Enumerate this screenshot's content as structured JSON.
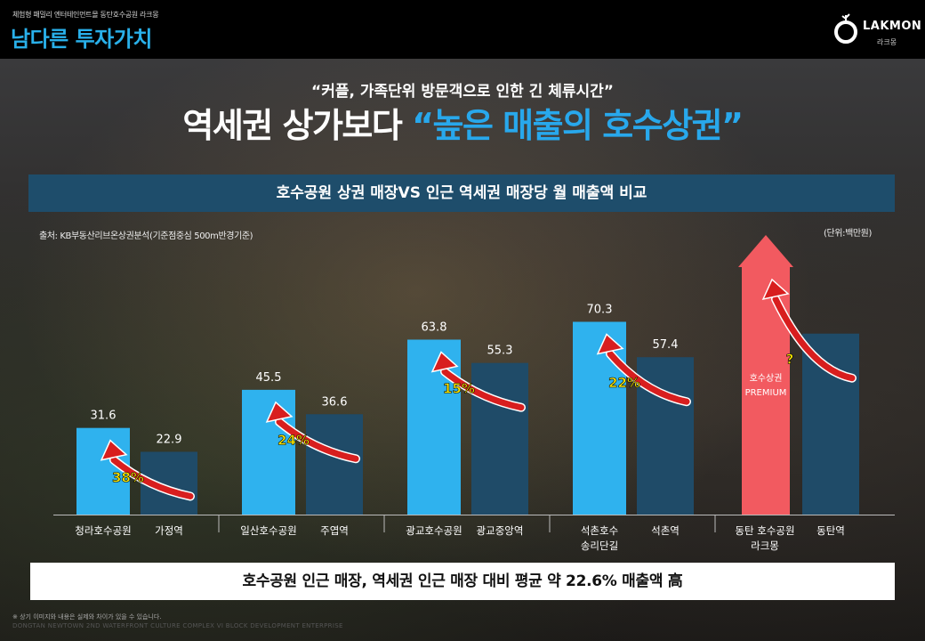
{
  "header": {
    "subtitle": "체험형 패밀리 엔터테인먼트몰 동탄호수공원 라크몽",
    "title": "남다른 투자가치"
  },
  "logo": {
    "name": "LAKMON",
    "korean": "라크몽"
  },
  "quote": "“커플, 가족단위 방문객으로 인한 긴 체류시간”",
  "headline": {
    "part1": "역세권 상가보다 ",
    "part2": "“높은 매출의 호수상권”"
  },
  "banner": "호수공원 상권 매장VS 인근 역세권 매장당 월 매출액 비교",
  "source": "출처: KB부동산리브온상권분석(기준점중심 500m반경기준)",
  "unit": "(단위:백만원)",
  "bottom_text": "호수공원 인근 매장, 역세권 인근 매장 대비 평균 약 22.6% 매출액 高",
  "footnote": "※ 상기 이미지와 내용은 실제와 차이가 있을 수 있습니다.",
  "footer_english": "DONGTAN NEWTOWN 2ND WATERFRONT CULTURE COMPLEX VI BLOCK DEVELOPMENT ENTERPRISE",
  "colors": {
    "lake": "#2fb2ee",
    "station": "#1f4b68",
    "premium": "#f25a60",
    "arrow": "#d81e1e",
    "headline_blue": "#28a8ec"
  },
  "chart_data": {
    "type": "bar",
    "ylim": [
      0,
      100
    ],
    "grid": false,
    "groups": [
      {
        "lake_label": [
          "청라호수공원"
        ],
        "lake_value": 31.6,
        "lake_value_label": "31.6",
        "station_label": [
          "가정역"
        ],
        "station_value": 22.9,
        "station_value_label": "22.9",
        "increase": "38%"
      },
      {
        "lake_label": [
          "일산호수공원"
        ],
        "lake_value": 45.5,
        "lake_value_label": "45.5",
        "station_label": [
          "주엽역"
        ],
        "station_value": 36.6,
        "station_value_label": "36.6",
        "increase": "24%"
      },
      {
        "lake_label": [
          "광교호수공원"
        ],
        "lake_value": 63.8,
        "lake_value_label": "63.8",
        "station_label": [
          "광교중앙역"
        ],
        "station_value": 55.3,
        "station_value_label": "55.3",
        "increase": "15%"
      },
      {
        "lake_label": [
          "석촌호수",
          "송리단길"
        ],
        "lake_value": 70.3,
        "lake_value_label": "70.3",
        "station_label": [
          "석촌역"
        ],
        "station_value": 57.4,
        "station_value_label": "57.4",
        "increase": "22%"
      },
      {
        "lake_label": [
          "동탄 호수공원",
          "라크몽"
        ],
        "lake_value": null,
        "lake_value_label": "",
        "station_label": [
          "동탄역"
        ],
        "station_value": 66.0,
        "station_value_label": "",
        "increase": "?",
        "premium_text": [
          "호수상권",
          "PREMIUM"
        ]
      }
    ]
  }
}
